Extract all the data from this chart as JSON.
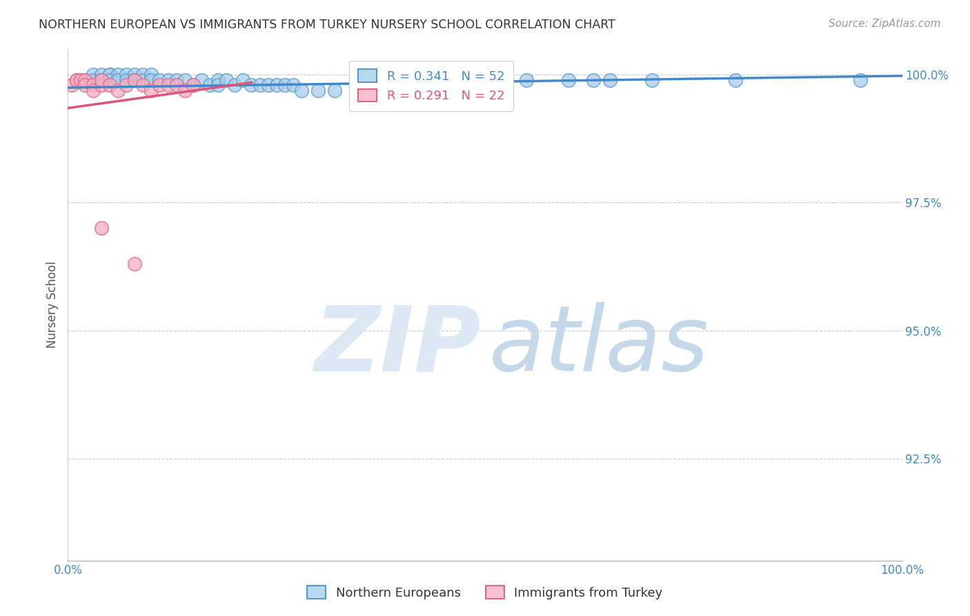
{
  "title": "NORTHERN EUROPEAN VS IMMIGRANTS FROM TURKEY NURSERY SCHOOL CORRELATION CHART",
  "source": "Source: ZipAtlas.com",
  "ylabel": "Nursery School",
  "xlim": [
    0.0,
    1.0
  ],
  "ylim": [
    0.905,
    1.005
  ],
  "yticks": [
    0.925,
    0.95,
    0.975,
    1.0
  ],
  "ytick_labels": [
    "92.5%",
    "95.0%",
    "97.5%",
    "100.0%"
  ],
  "xtick_labels": [
    "0.0%",
    "",
    "",
    "",
    "",
    "",
    "",
    "",
    "",
    "",
    "100.0%"
  ],
  "blue_R": 0.341,
  "blue_N": 52,
  "pink_R": 0.291,
  "pink_N": 22,
  "blue_color": "#a8cce8",
  "pink_color": "#f5aec0",
  "blue_edge_color": "#5599cc",
  "pink_edge_color": "#dd6688",
  "blue_line_color": "#4488cc",
  "pink_line_color": "#dd5577",
  "legend_blue_fill": "#b8d8f0",
  "legend_pink_fill": "#f8c0d0",
  "grid_color": "#cccccc",
  "blue_scatter_x": [
    0.01,
    0.02,
    0.03,
    0.03,
    0.04,
    0.04,
    0.05,
    0.05,
    0.05,
    0.06,
    0.06,
    0.07,
    0.07,
    0.08,
    0.08,
    0.09,
    0.09,
    0.1,
    0.1,
    0.11,
    0.12,
    0.13,
    0.14,
    0.15,
    0.16,
    0.17,
    0.18,
    0.18,
    0.19,
    0.2,
    0.21,
    0.22,
    0.23,
    0.24,
    0.25,
    0.26,
    0.27,
    0.28,
    0.3,
    0.32,
    0.35,
    0.38,
    0.4,
    0.45,
    0.5,
    0.55,
    0.6,
    0.63,
    0.65,
    0.7,
    0.8,
    0.95
  ],
  "blue_scatter_y": [
    0.999,
    0.999,
    1.0,
    0.999,
    1.0,
    0.999,
    1.0,
    1.0,
    0.999,
    1.0,
    0.999,
    1.0,
    0.999,
    1.0,
    0.999,
    1.0,
    0.999,
    1.0,
    0.999,
    0.999,
    0.999,
    0.999,
    0.999,
    0.998,
    0.999,
    0.998,
    0.999,
    0.998,
    0.999,
    0.998,
    0.999,
    0.998,
    0.998,
    0.998,
    0.998,
    0.998,
    0.998,
    0.997,
    0.997,
    0.997,
    0.999,
    0.999,
    0.999,
    0.999,
    0.999,
    0.999,
    0.999,
    0.999,
    0.999,
    0.999,
    0.999,
    0.999
  ],
  "pink_scatter_x": [
    0.005,
    0.01,
    0.015,
    0.02,
    0.02,
    0.03,
    0.03,
    0.04,
    0.04,
    0.05,
    0.06,
    0.07,
    0.08,
    0.09,
    0.1,
    0.11,
    0.12,
    0.13,
    0.14,
    0.15,
    0.04,
    0.08
  ],
  "pink_scatter_y": [
    0.998,
    0.999,
    0.999,
    0.999,
    0.998,
    0.998,
    0.997,
    0.998,
    0.999,
    0.998,
    0.997,
    0.998,
    0.999,
    0.998,
    0.997,
    0.998,
    0.998,
    0.998,
    0.997,
    0.998,
    0.97,
    0.963
  ],
  "blue_trend_start_x": 0.0,
  "blue_trend_end_x": 1.0,
  "blue_trend_start_y": 0.9975,
  "blue_trend_end_y": 0.9998,
  "pink_trend_start_x": 0.0,
  "pink_trend_end_x": 0.22,
  "pink_trend_start_y": 0.9935,
  "pink_trend_end_y": 0.9985
}
